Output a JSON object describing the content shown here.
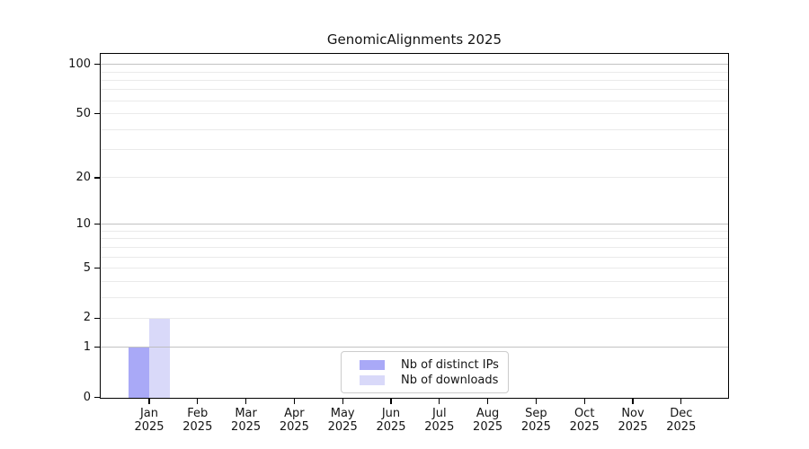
{
  "figure": {
    "background": "#ffffff"
  },
  "chart_data": {
    "type": "bar",
    "title": "GenomicAlignments 2025",
    "year_label": "2025",
    "categories": [
      "Jan",
      "Feb",
      "Mar",
      "Apr",
      "May",
      "Jun",
      "Jul",
      "Aug",
      "Sep",
      "Oct",
      "Nov",
      "Dec"
    ],
    "series": [
      {
        "name": "Nb of distinct IPs",
        "color": "#a9a9f7",
        "values": [
          1,
          0,
          0,
          0,
          0,
          0,
          0,
          0,
          0,
          0,
          0,
          0
        ]
      },
      {
        "name": "Nb of downloads",
        "color": "#d9d9f9",
        "values": [
          2,
          0,
          0,
          0,
          0,
          0,
          0,
          0,
          0,
          0,
          0,
          0
        ]
      }
    ],
    "yscale": "log1p",
    "ylim": [
      0,
      115
    ],
    "y_ticks": [
      0,
      1,
      2,
      5,
      10,
      20,
      50,
      100
    ],
    "y_grid_strong": [
      1,
      10,
      100
    ],
    "y_grid_weak": [
      2,
      3,
      4,
      5,
      6,
      7,
      8,
      9,
      20,
      30,
      40,
      50,
      60,
      70,
      80,
      90
    ],
    "grid": true,
    "legend_position": "lower center",
    "colors": {
      "grid_strong": "#b7b7b7",
      "grid_weak": "#eaeaea",
      "spine": "#000000",
      "text": "#141414",
      "legend_border": "#cccccc"
    }
  }
}
